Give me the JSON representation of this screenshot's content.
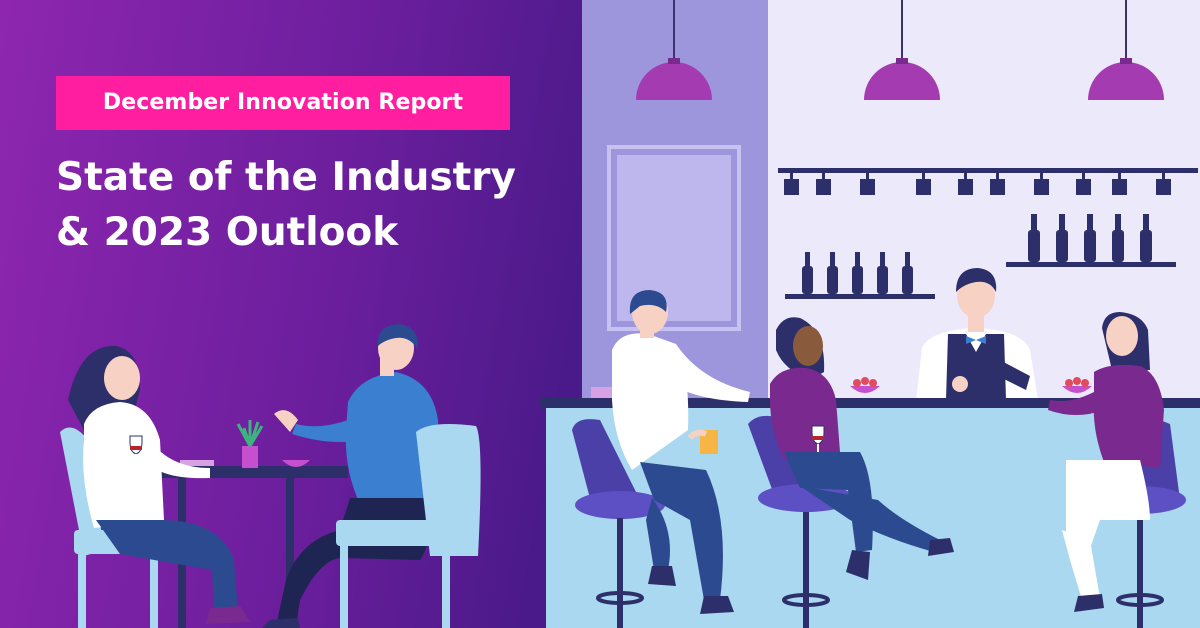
{
  "banner": {
    "eyebrow": "December Innovation Report",
    "headline_line1": "State of the Industry",
    "headline_line2": "& 2023 Outlook"
  },
  "colors": {
    "background_start": "#8e26b0",
    "background_end": "#4b1a8a",
    "eyebrow_background": "#ff1ea0",
    "bar_back_wall": "#ece9fb",
    "bar_side_wall": "#9d96dc",
    "bar_counter": "#a9d8f0",
    "accent_purple": "#7a2a8e"
  },
  "icons": [
    "pendant-lamp-icon",
    "wine-glass-icon",
    "bottle-icon",
    "bar-stool-icon",
    "plant-icon"
  ]
}
